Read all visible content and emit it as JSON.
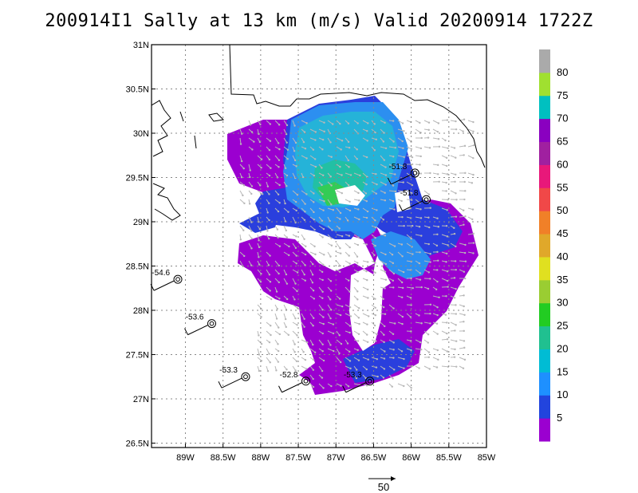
{
  "title": "200914I1 Sally at 13 km (m/s) Valid 20200914 1722Z",
  "chart_data": {
    "type": "heatmap",
    "title": "200914I1 Sally at 13 km (m/s) Valid 20200914 1722Z",
    "xlim": [
      -89.45,
      -85.0
    ],
    "ylim": [
      26.45,
      31.0
    ],
    "x_tick_labels": [
      "89W",
      "88.5W",
      "88W",
      "87.5W",
      "87W",
      "86.5W",
      "86W",
      "85.5W",
      "85W"
    ],
    "x_ticks": [
      -89.0,
      -88.5,
      -88.0,
      -87.5,
      -87.0,
      -86.5,
      -86.0,
      -85.5,
      -85.0
    ],
    "y_tick_labels": [
      "26.5N",
      "27N",
      "27.5N",
      "28N",
      "28.5N",
      "29N",
      "29.5N",
      "30N",
      "30.5N",
      "31N"
    ],
    "y_ticks": [
      26.5,
      27.0,
      27.5,
      28.0,
      28.5,
      29.0,
      29.5,
      30.0,
      30.5,
      31.0
    ],
    "grid": true,
    "colorbar": {
      "labels": [
        "5",
        "10",
        "15",
        "20",
        "25",
        "30",
        "35",
        "40",
        "45",
        "50",
        "55",
        "60",
        "65",
        "70",
        "75",
        "80"
      ],
      "colors": [
        "#9b00d0",
        "#2244dd",
        "#1e90ff",
        "#00bcd4",
        "#20c090",
        "#22cc22",
        "#9acd32",
        "#e0e020",
        "#e0a82a",
        "#f08028",
        "#f04848",
        "#e8187a",
        "#a020a0",
        "#8a00c0",
        "#00c0c0",
        "#a0e030",
        "#aaaaaa"
      ]
    },
    "scale_vector": {
      "label": "50"
    },
    "stations": [
      {
        "label": "-54.6",
        "lon": -89.1,
        "lat": 28.35
      },
      {
        "label": "-53.6",
        "lon": -88.65,
        "lat": 27.85
      },
      {
        "label": "-53.3",
        "lon": -88.2,
        "lat": 27.25
      },
      {
        "label": "-52.8",
        "lon": -87.4,
        "lat": 27.2
      },
      {
        "label": "-53.3",
        "lon": -86.55,
        "lat": 27.2
      },
      {
        "label": "-51.8",
        "lon": -85.95,
        "lat": 29.55
      },
      {
        "label": "-51.8",
        "lon": -85.8,
        "lat": 29.25
      }
    ]
  }
}
